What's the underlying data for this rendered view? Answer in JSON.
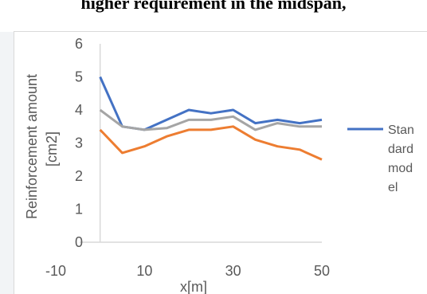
{
  "page": {
    "caption": "higher requirement in the midspan,"
  },
  "chart_data": {
    "type": "line",
    "title": "",
    "xlabel": "x[m]",
    "ylabel_lines": [
      "Reinforcement amount",
      "[cm2]"
    ],
    "xlim": [
      -10,
      50
    ],
    "ylim": [
      0,
      6
    ],
    "x_ticks": [
      -10,
      10,
      30,
      50
    ],
    "y_ticks": [
      0,
      1,
      2,
      3,
      4,
      5,
      6
    ],
    "x_tick_labels": [
      "-10",
      "10",
      "30",
      "50"
    ],
    "y_tick_labels": [
      "0",
      "1",
      "2",
      "3",
      "4",
      "5",
      "6"
    ],
    "grid": false,
    "legend_position": "right",
    "legend_lines": [
      "Stan",
      "dard",
      "mod",
      "el"
    ],
    "series": [
      {
        "name": "Standard model",
        "color": "#4472c4",
        "x": [
          0,
          5,
          10,
          15,
          20,
          25,
          30,
          35,
          40,
          45,
          50
        ],
        "y": [
          5.0,
          3.5,
          3.4,
          3.7,
          4.0,
          3.9,
          4.0,
          3.6,
          3.7,
          3.6,
          3.7
        ]
      },
      {
        "color": "#a5a5a5",
        "x": [
          0,
          5,
          10,
          15,
          20,
          25,
          30,
          35,
          40,
          45,
          50
        ],
        "y": [
          4.0,
          3.5,
          3.4,
          3.45,
          3.7,
          3.7,
          3.8,
          3.4,
          3.6,
          3.5,
          3.5
        ]
      },
      {
        "color": "#ed7d31",
        "x": [
          0,
          5,
          10,
          15,
          20,
          25,
          30,
          35,
          40,
          45,
          50
        ],
        "y": [
          3.4,
          2.7,
          2.9,
          3.2,
          3.4,
          3.4,
          3.5,
          3.1,
          2.9,
          2.8,
          2.5
        ]
      }
    ]
  }
}
